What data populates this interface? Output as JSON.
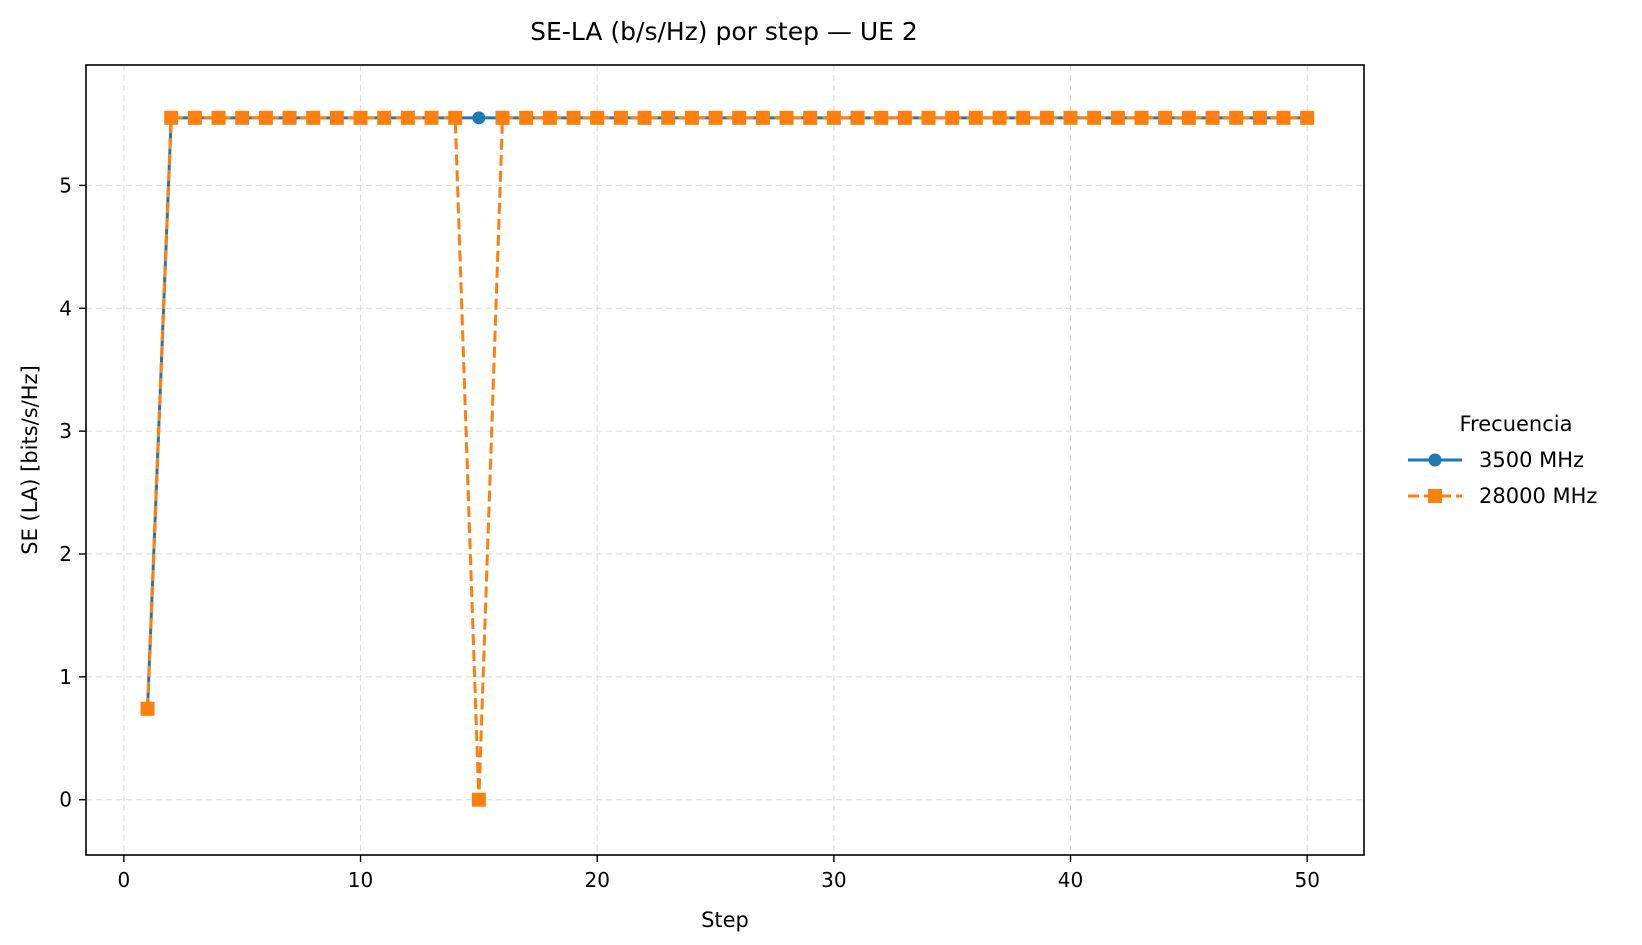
{
  "chart_data": {
    "type": "line",
    "title": "SE-LA (b/s/Hz) por step — UE 2",
    "xlabel": "Step",
    "ylabel": "SE (LA) [bits/s/Hz]",
    "xlim": [
      -1.6,
      52.4
    ],
    "ylim": [
      -0.45,
      5.98
    ],
    "xticks": [
      0,
      10,
      20,
      30,
      40,
      50
    ],
    "yticks": [
      0,
      1,
      2,
      3,
      4,
      5
    ],
    "grid": true,
    "legend": {
      "title": "Frecuencia",
      "placement": "right-outside"
    },
    "x": [
      1,
      2,
      3,
      4,
      5,
      6,
      7,
      8,
      9,
      10,
      11,
      12,
      13,
      14,
      15,
      16,
      17,
      18,
      19,
      20,
      21,
      22,
      23,
      24,
      25,
      26,
      27,
      28,
      29,
      30,
      31,
      32,
      33,
      34,
      35,
      36,
      37,
      38,
      39,
      40,
      41,
      42,
      43,
      44,
      45,
      46,
      47,
      48,
      49,
      50
    ],
    "series": [
      {
        "name": "3500 MHz",
        "color": "#1f77b4",
        "marker": "circle",
        "linestyle": "solid",
        "values": [
          0.74,
          5.55,
          5.55,
          5.55,
          5.55,
          5.55,
          5.55,
          5.55,
          5.55,
          5.55,
          5.55,
          5.55,
          5.55,
          5.55,
          5.55,
          5.55,
          5.55,
          5.55,
          5.55,
          5.55,
          5.55,
          5.55,
          5.55,
          5.55,
          5.55,
          5.55,
          5.55,
          5.55,
          5.55,
          5.55,
          5.55,
          5.55,
          5.55,
          5.55,
          5.55,
          5.55,
          5.55,
          5.55,
          5.55,
          5.55,
          5.55,
          5.55,
          5.55,
          5.55,
          5.55,
          5.55,
          5.55,
          5.55,
          5.55,
          5.55
        ]
      },
      {
        "name": "28000 MHz",
        "color": "#ff7f0e",
        "marker": "square",
        "linestyle": "dashed",
        "values": [
          0.74,
          5.55,
          5.55,
          5.55,
          5.55,
          5.55,
          5.55,
          5.55,
          5.55,
          5.55,
          5.55,
          5.55,
          5.55,
          5.55,
          0.0,
          5.55,
          5.55,
          5.55,
          5.55,
          5.55,
          5.55,
          5.55,
          5.55,
          5.55,
          5.55,
          5.55,
          5.55,
          5.55,
          5.55,
          5.55,
          5.55,
          5.55,
          5.55,
          5.55,
          5.55,
          5.55,
          5.55,
          5.55,
          5.55,
          5.55,
          5.55,
          5.55,
          5.55,
          5.55,
          5.55,
          5.55,
          5.55,
          5.55,
          5.55,
          5.55
        ]
      }
    ]
  }
}
